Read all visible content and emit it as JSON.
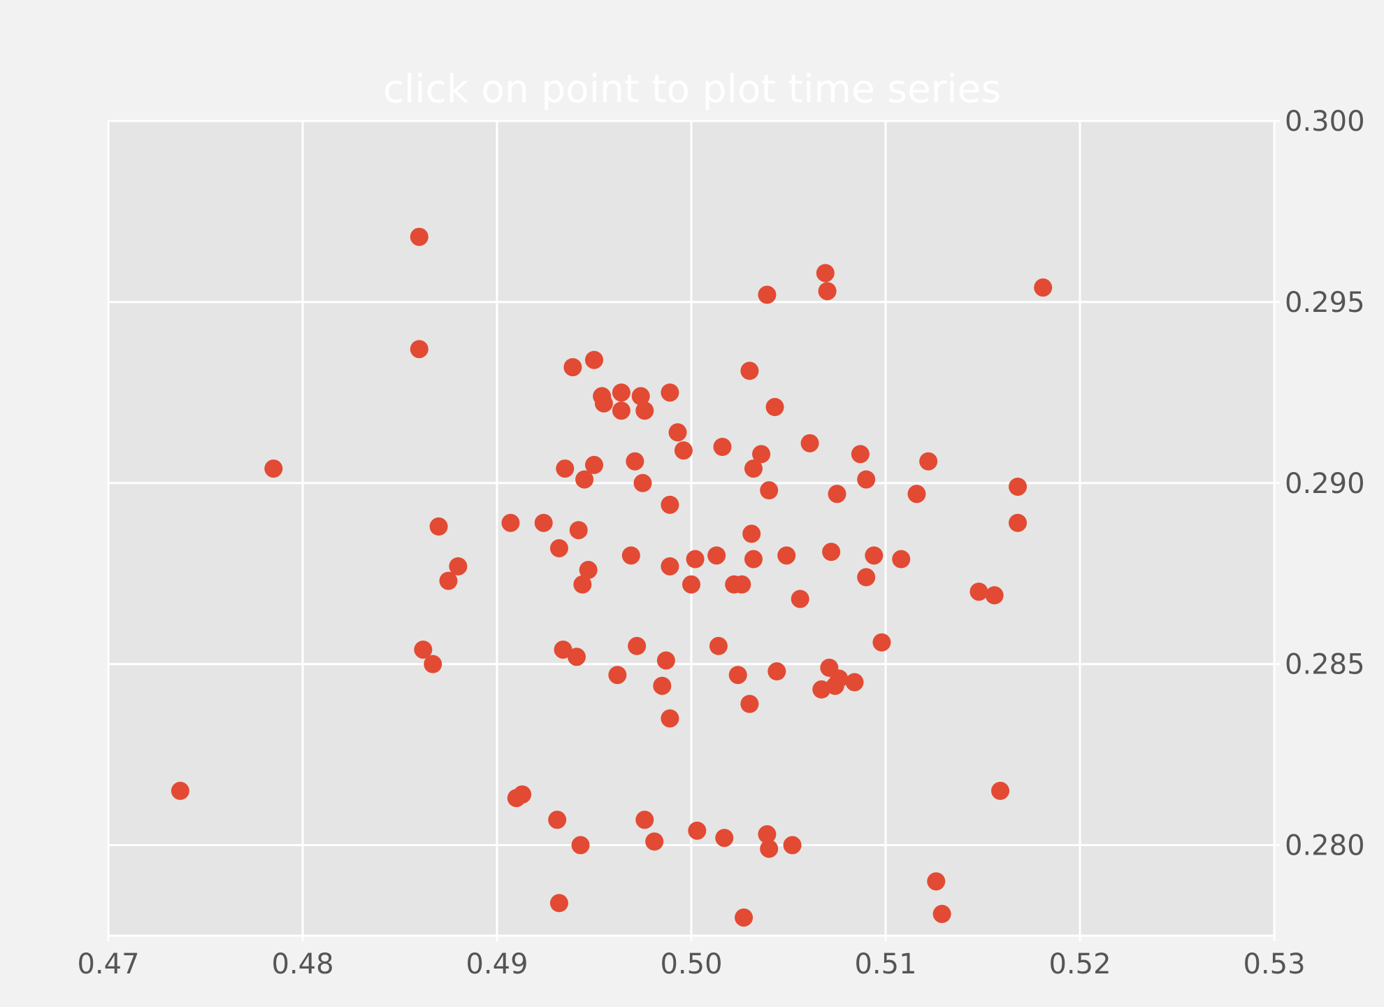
{
  "chart_data": {
    "type": "scatter",
    "title": "click on point to plot time series",
    "xlabel": "",
    "ylabel": "",
    "xlim": [
      0.47,
      0.53
    ],
    "ylim": [
      0.2775,
      0.3
    ],
    "grid": true,
    "x_ticks": [
      "0.47",
      "0.48",
      "0.49",
      "0.50",
      "0.51",
      "0.52",
      "0.53"
    ],
    "y_ticks": [
      "0.280",
      "0.285",
      "0.290",
      "0.295",
      "0.300"
    ],
    "y_tick_values": [
      0.28,
      0.285,
      0.29,
      0.295,
      0.3
    ],
    "y_axis_side": "right",
    "marker_color": "#e24a33",
    "points": [
      [
        0.4737,
        0.2815
      ],
      [
        0.4785,
        0.2904
      ],
      [
        0.486,
        0.2968
      ],
      [
        0.486,
        0.2937
      ],
      [
        0.487,
        0.2888
      ],
      [
        0.488,
        0.2877
      ],
      [
        0.4875,
        0.2873
      ],
      [
        0.4862,
        0.2854
      ],
      [
        0.4867,
        0.285
      ],
      [
        0.491,
        0.2813
      ],
      [
        0.4913,
        0.2814
      ],
      [
        0.4907,
        0.2889
      ],
      [
        0.4924,
        0.2889
      ],
      [
        0.4932,
        0.2882
      ],
      [
        0.4935,
        0.2904
      ],
      [
        0.4934,
        0.2854
      ],
      [
        0.4941,
        0.2852
      ],
      [
        0.4931,
        0.2807
      ],
      [
        0.4943,
        0.28
      ],
      [
        0.4932,
        0.2784
      ],
      [
        0.4939,
        0.2932
      ],
      [
        0.495,
        0.2934
      ],
      [
        0.4942,
        0.2887
      ],
      [
        0.4945,
        0.2901
      ],
      [
        0.495,
        0.2905
      ],
      [
        0.4947,
        0.2876
      ],
      [
        0.4944,
        0.2872
      ],
      [
        0.4955,
        0.2922
      ],
      [
        0.4954,
        0.2924
      ],
      [
        0.4964,
        0.2925
      ],
      [
        0.4964,
        0.292
      ],
      [
        0.4962,
        0.2847
      ],
      [
        0.4969,
        0.288
      ],
      [
        0.4971,
        0.2906
      ],
      [
        0.4975,
        0.29
      ],
      [
        0.4974,
        0.2924
      ],
      [
        0.4976,
        0.292
      ],
      [
        0.4972,
        0.2855
      ],
      [
        0.4976,
        0.2807
      ],
      [
        0.4981,
        0.2801
      ],
      [
        0.4985,
        0.2844
      ],
      [
        0.4987,
        0.2851
      ],
      [
        0.4989,
        0.2925
      ],
      [
        0.4993,
        0.2914
      ],
      [
        0.4996,
        0.2909
      ],
      [
        0.4989,
        0.2894
      ],
      [
        0.4989,
        0.2877
      ],
      [
        0.4989,
        0.2835
      ],
      [
        0.5,
        0.2872
      ],
      [
        0.5002,
        0.2879
      ],
      [
        0.5003,
        0.2804
      ],
      [
        0.5013,
        0.288
      ],
      [
        0.5014,
        0.2855
      ],
      [
        0.5016,
        0.291
      ],
      [
        0.5017,
        0.2802
      ],
      [
        0.5022,
        0.2872
      ],
      [
        0.5026,
        0.2872
      ],
      [
        0.5024,
        0.2847
      ],
      [
        0.5027,
        0.278
      ],
      [
        0.503,
        0.2839
      ],
      [
        0.503,
        0.2931
      ],
      [
        0.5031,
        0.2886
      ],
      [
        0.5032,
        0.2879
      ],
      [
        0.5032,
        0.2904
      ],
      [
        0.5036,
        0.2908
      ],
      [
        0.5039,
        0.2952
      ],
      [
        0.504,
        0.2898
      ],
      [
        0.5039,
        0.2803
      ],
      [
        0.504,
        0.2799
      ],
      [
        0.5043,
        0.2921
      ],
      [
        0.5044,
        0.2848
      ],
      [
        0.5049,
        0.288
      ],
      [
        0.5052,
        0.28
      ],
      [
        0.5056,
        0.2868
      ],
      [
        0.5061,
        0.2911
      ],
      [
        0.5067,
        0.2843
      ],
      [
        0.5069,
        0.2958
      ],
      [
        0.507,
        0.2953
      ],
      [
        0.5071,
        0.2849
      ],
      [
        0.5072,
        0.2881
      ],
      [
        0.5074,
        0.2844
      ],
      [
        0.5076,
        0.2846
      ],
      [
        0.5075,
        0.2897
      ],
      [
        0.5084,
        0.2845
      ],
      [
        0.5087,
        0.2908
      ],
      [
        0.509,
        0.2901
      ],
      [
        0.509,
        0.2874
      ],
      [
        0.5094,
        0.288
      ],
      [
        0.5098,
        0.2856
      ],
      [
        0.5108,
        0.2879
      ],
      [
        0.5116,
        0.2897
      ],
      [
        0.5122,
        0.2906
      ],
      [
        0.5126,
        0.279
      ],
      [
        0.5129,
        0.2781
      ],
      [
        0.5148,
        0.287
      ],
      [
        0.5156,
        0.2869
      ],
      [
        0.5159,
        0.2815
      ],
      [
        0.5168,
        0.2899
      ],
      [
        0.5168,
        0.2889
      ],
      [
        0.5181,
        0.2954
      ]
    ]
  }
}
